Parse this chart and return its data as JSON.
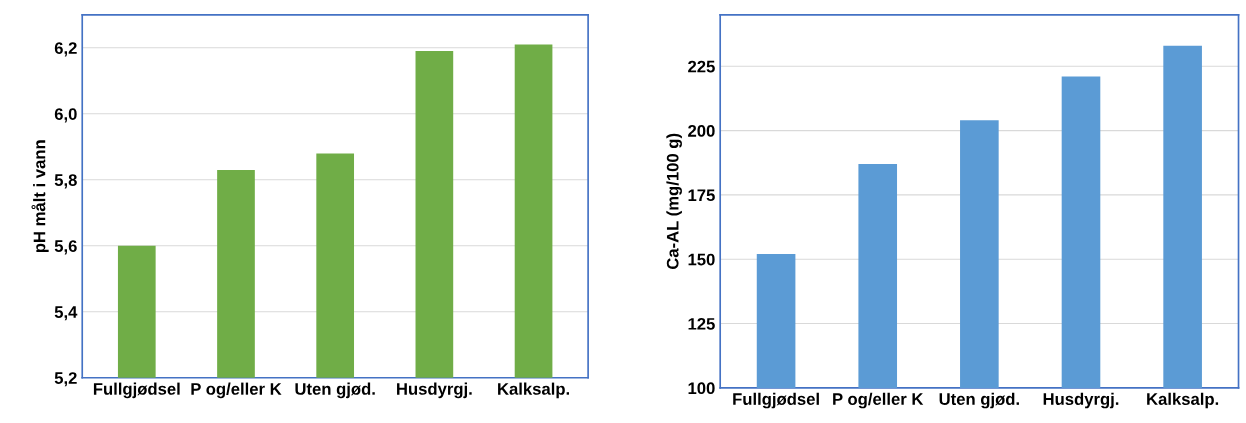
{
  "chart_data": [
    {
      "type": "bar",
      "ylabel": "pH målt i vann",
      "categories": [
        "Fullgjødsel",
        "P og/eller K",
        "Uten gjød.",
        "Husdyrgj.",
        "Kalksalp."
      ],
      "values": [
        5.6,
        5.83,
        5.88,
        6.19,
        6.21
      ],
      "color": "#70ad47",
      "ylim": [
        5.2,
        6.3
      ],
      "yticks": [
        {
          "value": 5.2,
          "label": "5,2"
        },
        {
          "value": 5.4,
          "label": "5,4"
        },
        {
          "value": 5.6,
          "label": "5,6"
        },
        {
          "value": 5.8,
          "label": "5,8"
        },
        {
          "value": 6.0,
          "label": "6,0"
        },
        {
          "value": 6.2,
          "label": "6,2"
        }
      ],
      "grid": "y"
    },
    {
      "type": "bar",
      "ylabel": "Ca-AL (mg/100 g)",
      "categories": [
        "Fullgjødsel",
        "P og/eller K",
        "Uten gjød.",
        "Husdyrgj.",
        "Kalksalp."
      ],
      "values": [
        152,
        187,
        204,
        221,
        233
      ],
      "color": "#5b9bd5",
      "ylim": [
        100,
        245
      ],
      "yticks": [
        100,
        125,
        150,
        175,
        200,
        225
      ],
      "grid": "y"
    }
  ]
}
